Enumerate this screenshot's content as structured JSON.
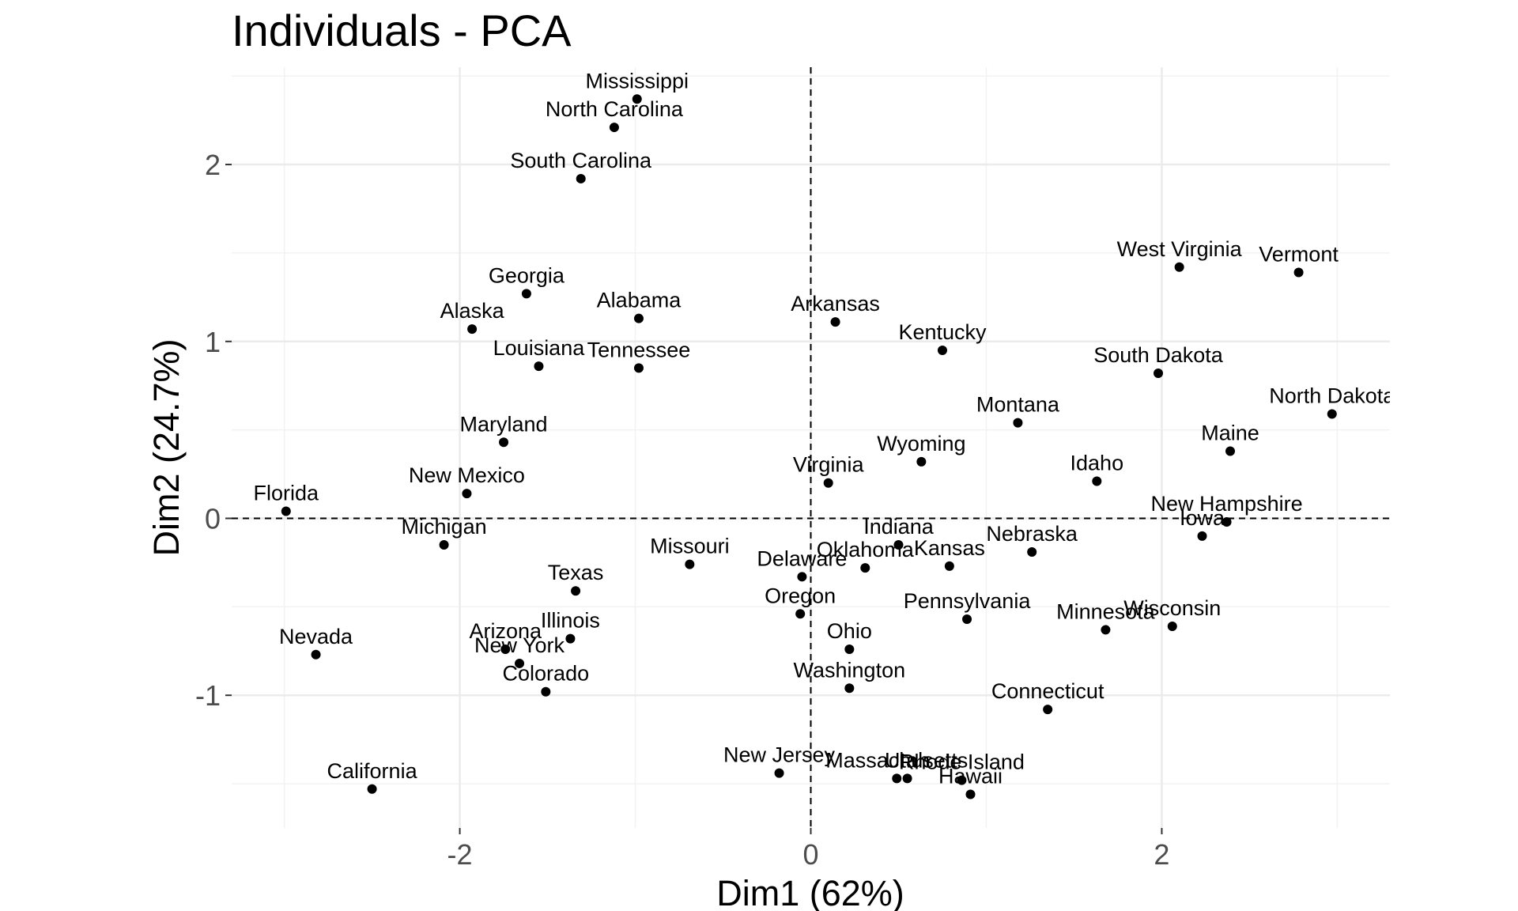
{
  "chart_data": {
    "type": "scatter",
    "title": "Individuals - PCA",
    "xlabel": "Dim1 (62%)",
    "ylabel": "Dim2 (24.7%)",
    "xlim": [
      -3.3,
      3.3
    ],
    "ylim": [
      -1.75,
      2.55
    ],
    "xticks": [
      -2,
      0,
      2
    ],
    "yticks": [
      -1,
      0,
      1,
      2
    ],
    "grid": true,
    "reference_lines": {
      "x": 0,
      "y": 0,
      "style": "dashed"
    },
    "point_color": "#000000",
    "points": [
      {
        "label": "Mississippi",
        "x": -0.99,
        "y": 2.37
      },
      {
        "label": "North Carolina",
        "x": -1.12,
        "y": 2.21
      },
      {
        "label": "South Carolina",
        "x": -1.31,
        "y": 1.92
      },
      {
        "label": "West Virginia",
        "x": 2.1,
        "y": 1.42
      },
      {
        "label": "Vermont",
        "x": 2.78,
        "y": 1.39
      },
      {
        "label": "Georgia",
        "x": -1.62,
        "y": 1.27
      },
      {
        "label": "Alabama",
        "x": -0.98,
        "y": 1.13
      },
      {
        "label": "Arkansas",
        "x": 0.14,
        "y": 1.11
      },
      {
        "label": "Alaska",
        "x": -1.93,
        "y": 1.07
      },
      {
        "label": "Kentucky",
        "x": 0.75,
        "y": 0.95
      },
      {
        "label": "Louisiana",
        "x": -1.55,
        "y": 0.86
      },
      {
        "label": "Tennessee",
        "x": -0.98,
        "y": 0.85
      },
      {
        "label": "South Dakota",
        "x": 1.98,
        "y": 0.82
      },
      {
        "label": "North Dakota",
        "x": 2.97,
        "y": 0.59
      },
      {
        "label": "Montana",
        "x": 1.18,
        "y": 0.54
      },
      {
        "label": "Maryland",
        "x": -1.75,
        "y": 0.43
      },
      {
        "label": "Maine",
        "x": 2.39,
        "y": 0.38
      },
      {
        "label": "Wyoming",
        "x": 0.63,
        "y": 0.32
      },
      {
        "label": "Idaho",
        "x": 1.63,
        "y": 0.21
      },
      {
        "label": "Virginia",
        "x": 0.1,
        "y": 0.2
      },
      {
        "label": "New Mexico",
        "x": -1.96,
        "y": 0.14
      },
      {
        "label": "Florida",
        "x": -2.99,
        "y": 0.04
      },
      {
        "label": "New Hampshire",
        "x": 2.37,
        "y": -0.02
      },
      {
        "label": "Iowa",
        "x": 2.23,
        "y": -0.1
      },
      {
        "label": "Indiana",
        "x": 0.5,
        "y": -0.15
      },
      {
        "label": "Michigan",
        "x": -2.09,
        "y": -0.15
      },
      {
        "label": "Nebraska",
        "x": 1.26,
        "y": -0.19
      },
      {
        "label": "Missouri",
        "x": -0.69,
        "y": -0.26
      },
      {
        "label": "Kansas",
        "x": 0.79,
        "y": -0.27
      },
      {
        "label": "Oklahoma",
        "x": 0.31,
        "y": -0.28
      },
      {
        "label": "Delaware",
        "x": -0.05,
        "y": -0.33
      },
      {
        "label": "Texas",
        "x": -1.34,
        "y": -0.41
      },
      {
        "label": "Oregon",
        "x": -0.06,
        "y": -0.54
      },
      {
        "label": "Pennsylvania",
        "x": 0.89,
        "y": -0.57
      },
      {
        "label": "Wisconsin",
        "x": 2.06,
        "y": -0.61
      },
      {
        "label": "Minnesota",
        "x": 1.68,
        "y": -0.63
      },
      {
        "label": "Illinois",
        "x": -1.37,
        "y": -0.68
      },
      {
        "label": "Ohio",
        "x": 0.22,
        "y": -0.74
      },
      {
        "label": "Arizona",
        "x": -1.74,
        "y": -0.74
      },
      {
        "label": "Nevada",
        "x": -2.82,
        "y": -0.77
      },
      {
        "label": "New York",
        "x": -1.66,
        "y": -0.82
      },
      {
        "label": "Washington",
        "x": 0.22,
        "y": -0.96
      },
      {
        "label": "Colorado",
        "x": -1.51,
        "y": -0.98
      },
      {
        "label": "Connecticut",
        "x": 1.35,
        "y": -1.08
      },
      {
        "label": "New Jersey",
        "x": -0.18,
        "y": -1.44
      },
      {
        "label": "Massachusetts",
        "x": 0.49,
        "y": -1.47
      },
      {
        "label": "Utah",
        "x": 0.55,
        "y": -1.47
      },
      {
        "label": "Rhode Island",
        "x": 0.86,
        "y": -1.48
      },
      {
        "label": "Hawaii",
        "x": 0.91,
        "y": -1.56
      },
      {
        "label": "California",
        "x": -2.5,
        "y": -1.53
      }
    ]
  }
}
